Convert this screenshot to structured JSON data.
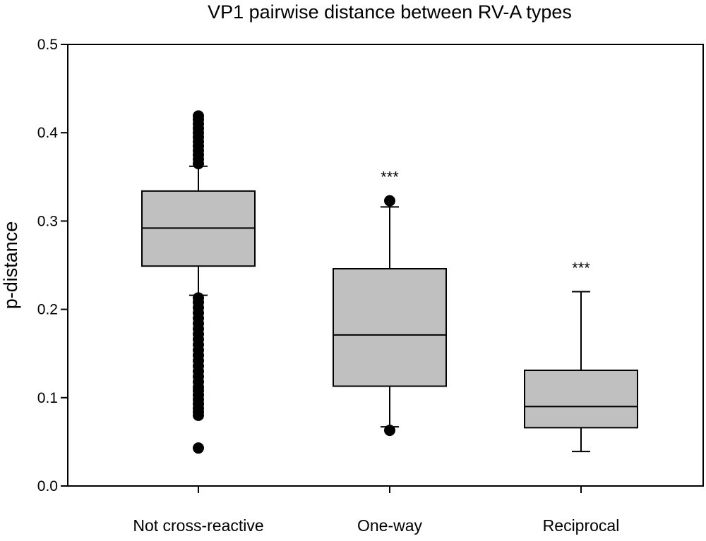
{
  "chart_data": {
    "type": "box",
    "title": "VP1 pairwise distance between RV-A types",
    "xlabel": "",
    "ylabel": "p-distance",
    "ylim": [
      0,
      0.5
    ],
    "yticks": [
      "0.0",
      "0.1",
      "0.2",
      "0.3",
      "0.4",
      "0.5"
    ],
    "ytick_values": [
      0,
      0.1,
      0.2,
      0.3,
      0.4,
      0.5
    ],
    "grid": false,
    "box_fill": "#c0c0c0",
    "categories": [
      "Not cross-reactive",
      "One-way",
      "Reciprocal"
    ],
    "boxes": [
      {
        "category": "Not cross-reactive",
        "whisker_low": 0.216,
        "q1": 0.249,
        "median": 0.292,
        "q3": 0.334,
        "whisker_high": 0.362,
        "outliers": [
          0.043,
          0.08,
          0.084,
          0.088,
          0.093,
          0.098,
          0.103,
          0.108,
          0.112,
          0.118,
          0.124,
          0.13,
          0.136,
          0.142,
          0.148,
          0.154,
          0.16,
          0.166,
          0.172,
          0.178,
          0.184,
          0.19,
          0.196,
          0.202,
          0.208,
          0.213,
          0.365,
          0.37,
          0.375,
          0.38,
          0.385,
          0.39,
          0.395,
          0.4,
          0.405,
          0.41,
          0.415,
          0.419
        ],
        "annotation": ""
      },
      {
        "category": "One-way",
        "whisker_low": 0.067,
        "q1": 0.113,
        "median": 0.171,
        "q3": 0.246,
        "whisker_high": 0.316,
        "outliers": [
          0.063,
          0.323
        ],
        "annotation": "***"
      },
      {
        "category": "Reciprocal",
        "whisker_low": 0.039,
        "q1": 0.066,
        "median": 0.09,
        "q3": 0.131,
        "whisker_high": 0.22,
        "outliers": [],
        "annotation": "***"
      }
    ]
  }
}
